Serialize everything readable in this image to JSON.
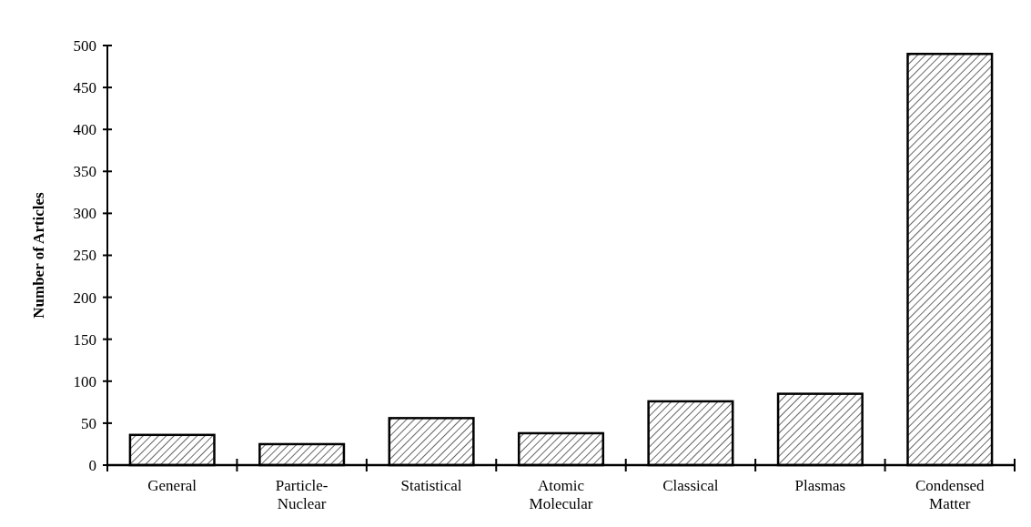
{
  "chart_data": {
    "type": "bar",
    "ylabel": "Number of Articles",
    "categories": [
      "General",
      "Particle-\nNuclear",
      "Statistical",
      "Atomic\nMolecular",
      "Classical",
      "Plasmas",
      "Condensed\nMatter"
    ],
    "values": [
      36,
      25,
      56,
      38,
      76,
      85,
      490
    ],
    "color": "#000000",
    "ylim": [
      0,
      500
    ],
    "yticks": [
      0,
      50,
      100,
      150,
      200,
      250,
      300,
      350,
      400,
      450,
      500
    ],
    "grid": false
  }
}
